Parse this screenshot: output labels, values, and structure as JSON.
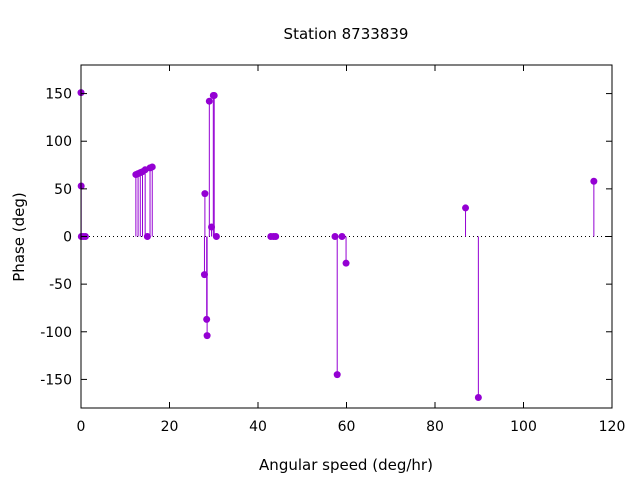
{
  "chart_data": {
    "type": "scatter",
    "style": "impulses-with-points",
    "title": "Station 8733839",
    "xlabel": "Angular speed (deg/hr)",
    "ylabel": "Phase (deg)",
    "xlim": [
      0,
      120
    ],
    "ylim": [
      -180,
      180
    ],
    "xticks": [
      0,
      20,
      40,
      60,
      80,
      100,
      120
    ],
    "yticks": [
      -150,
      -100,
      -50,
      0,
      50,
      100,
      150
    ],
    "xtick_labels": [
      "0",
      "20",
      "40",
      "60",
      "80",
      "100",
      "120"
    ],
    "ytick_labels": [
      "-150",
      "-100",
      "-50",
      "0",
      "50",
      "100",
      "150"
    ],
    "grid": false,
    "zero_line": "dotted",
    "series_color": "#9400d3",
    "x": [
      0.0,
      0.04,
      0.08,
      0.5,
      1.0,
      12.4,
      12.9,
      13.4,
      13.9,
      14.5,
      15.0,
      15.6,
      16.1,
      27.9,
      28.0,
      28.4,
      28.5,
      29.0,
      29.5,
      29.9,
      30.1,
      30.6,
      42.9,
      43.5,
      44.0,
      57.4,
      57.9,
      58.98,
      59.9,
      86.9,
      89.8,
      115.9
    ],
    "y": [
      151,
      53,
      0,
      0,
      0,
      65,
      66,
      67,
      68,
      70,
      0,
      72,
      73,
      -40,
      45,
      -87,
      -104,
      142,
      10,
      148,
      148,
      0,
      0,
      0,
      0,
      0,
      -145,
      0,
      -28,
      30,
      -169,
      58
    ]
  }
}
